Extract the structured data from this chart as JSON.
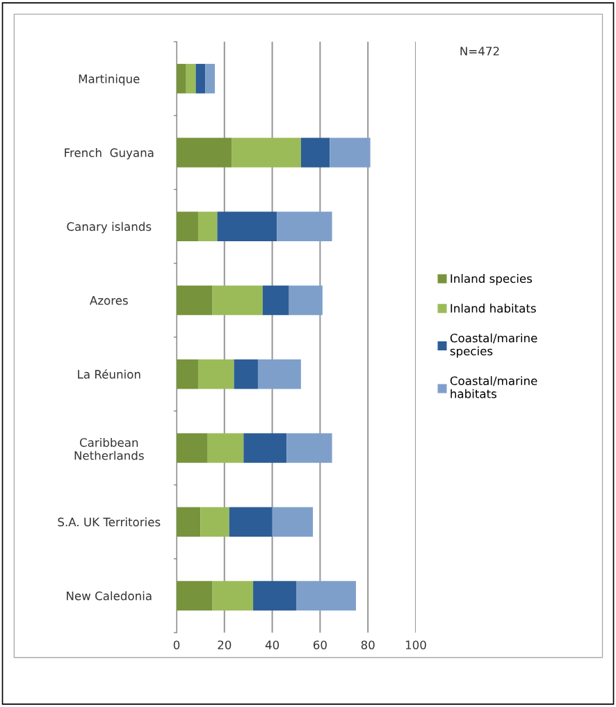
{
  "chart_data": {
    "type": "bar",
    "orientation": "horizontal",
    "stacked": true,
    "categories": [
      "Martinique",
      "French  Guyana",
      "Canary islands",
      "Azores",
      "La Réunion",
      "Caribbean\nNetherlands",
      "S.A. UK Territories",
      "New Caledonia"
    ],
    "series": [
      {
        "name": "Inland species",
        "color": "#77933c",
        "values": [
          4,
          23,
          9,
          15,
          9,
          13,
          10,
          15
        ]
      },
      {
        "name": "Inland habitats",
        "color": "#9bbb59",
        "values": [
          4,
          29,
          8,
          21,
          15,
          15,
          12,
          17
        ]
      },
      {
        "name": "Coastal/marine\nspecies",
        "color": "#2c5d96",
        "values": [
          4,
          12,
          25,
          11,
          10,
          18,
          18,
          18
        ]
      },
      {
        "name": "Coastal/marine\nhabitats",
        "color": "#7f9fcb",
        "values": [
          4,
          17,
          23,
          14,
          18,
          19,
          17,
          25
        ]
      }
    ],
    "xlim": [
      0,
      100
    ],
    "xticks": [
      0,
      20,
      40,
      60,
      80,
      100
    ],
    "grid": "x",
    "legend": "right",
    "annotations": [
      "N=472"
    ]
  }
}
